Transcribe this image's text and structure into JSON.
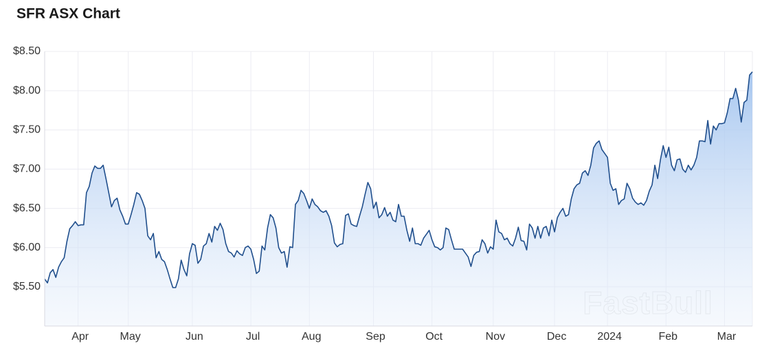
{
  "chart_data": {
    "type": "line",
    "title": "SFR ASX Chart",
    "watermark": "FastBull",
    "color": "#1f4e8c",
    "grid": true,
    "xlim": [
      0,
      254
    ],
    "xticks": [
      {
        "value": 12,
        "label": "Apr"
      },
      {
        "value": 30,
        "label": "May"
      },
      {
        "value": 53,
        "label": "Jun"
      },
      {
        "value": 74,
        "label": "Jul"
      },
      {
        "value": 95,
        "label": "Aug"
      },
      {
        "value": 118,
        "label": "Sep"
      },
      {
        "value": 139,
        "label": "Oct"
      },
      {
        "value": 161,
        "label": "Nov"
      },
      {
        "value": 183,
        "label": "Dec"
      },
      {
        "value": 202,
        "label": "2024"
      },
      {
        "value": 223,
        "label": "Feb"
      },
      {
        "value": 244,
        "label": "Mar"
      }
    ],
    "ylim": [
      5.0,
      8.5
    ],
    "yticks": [
      {
        "value": 5.5,
        "label": "$5.50"
      },
      {
        "value": 6.0,
        "label": "$6.00"
      },
      {
        "value": 6.5,
        "label": "$6.50"
      },
      {
        "value": 7.0,
        "label": "$7.00"
      },
      {
        "value": 7.5,
        "label": "$7.50"
      },
      {
        "value": 8.0,
        "label": "$8.00"
      },
      {
        "value": 8.5,
        "label": "$8.50"
      }
    ],
    "values": [
      5.6,
      5.55,
      5.68,
      5.72,
      5.62,
      5.75,
      5.82,
      5.87,
      6.08,
      6.24,
      6.28,
      6.33,
      6.28,
      6.29,
      6.29,
      6.7,
      6.78,
      6.95,
      7.04,
      7.01,
      7.01,
      7.05,
      6.88,
      6.7,
      6.52,
      6.6,
      6.63,
      6.48,
      6.4,
      6.3,
      6.3,
      6.42,
      6.55,
      6.7,
      6.68,
      6.6,
      6.5,
      6.15,
      6.1,
      6.18,
      5.87,
      5.95,
      5.85,
      5.82,
      5.72,
      5.6,
      5.49,
      5.49,
      5.6,
      5.84,
      5.72,
      5.64,
      5.92,
      6.05,
      6.03,
      5.8,
      5.85,
      6.02,
      6.05,
      6.18,
      6.07,
      6.27,
      6.22,
      6.31,
      6.23,
      6.05,
      5.95,
      5.93,
      5.88,
      5.96,
      5.92,
      5.9,
      6.0,
      6.02,
      5.98,
      5.85,
      5.67,
      5.7,
      6.02,
      5.97,
      6.25,
      6.42,
      6.38,
      6.25,
      6.0,
      5.93,
      5.95,
      5.75,
      6.01,
      6.0,
      6.55,
      6.6,
      6.73,
      6.69,
      6.6,
      6.5,
      6.62,
      6.55,
      6.52,
      6.47,
      6.45,
      6.47,
      6.4,
      6.28,
      6.06,
      6.01,
      6.04,
      6.05,
      6.41,
      6.43,
      6.3,
      6.28,
      6.27,
      6.4,
      6.52,
      6.68,
      6.83,
      6.75,
      6.5,
      6.58,
      6.38,
      6.42,
      6.51,
      6.4,
      6.45,
      6.35,
      6.33,
      6.55,
      6.4,
      6.4,
      6.22,
      6.08,
      6.25,
      6.05,
      6.05,
      6.03,
      6.12,
      6.17,
      6.22,
      6.1,
      6.01,
      6.0,
      5.97,
      6.0,
      6.25,
      6.23,
      6.1,
      5.98,
      5.98,
      5.98,
      5.98,
      5.93,
      5.88,
      5.76,
      5.9,
      5.94,
      5.95,
      6.1,
      6.05,
      5.93,
      6.01,
      5.98,
      6.35,
      6.2,
      6.18,
      6.1,
      6.12,
      6.05,
      6.02,
      6.12,
      6.26,
      6.09,
      6.08,
      5.97,
      6.3,
      6.25,
      6.12,
      6.27,
      6.12,
      6.25,
      6.27,
      6.15,
      6.35,
      6.2,
      6.38,
      6.45,
      6.5,
      6.4,
      6.42,
      6.62,
      6.75,
      6.8,
      6.82,
      6.95,
      6.98,
      6.92,
      7.05,
      7.27,
      7.33,
      7.36,
      7.25,
      7.2,
      7.15,
      6.82,
      6.73,
      6.75,
      6.55,
      6.6,
      6.62,
      6.82,
      6.75,
      6.63,
      6.58,
      6.55,
      6.57,
      6.54,
      6.6,
      6.72,
      6.8,
      7.05,
      6.88,
      7.12,
      7.3,
      7.15,
      7.28,
      7.05,
      6.98,
      7.12,
      7.13,
      7.0,
      6.96,
      7.05,
      6.99,
      7.05,
      7.15,
      7.36,
      7.36,
      7.35,
      7.62,
      7.32,
      7.55,
      7.5,
      7.58,
      7.58,
      7.59,
      7.72,
      7.9,
      7.9,
      8.03,
      7.88,
      7.6,
      7.85,
      7.88,
      8.2,
      8.24
    ]
  }
}
